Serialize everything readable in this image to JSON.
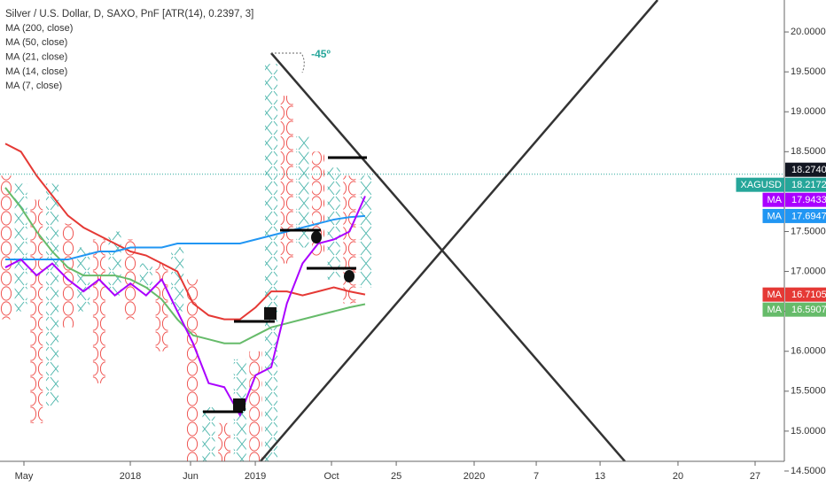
{
  "chart_data": {
    "type": "pnf",
    "title": "Silver / U.S. Dollar, D, SAXO, PnF [ATR(14), 0.2397, 3]",
    "indicators": [
      "MA (200, close)",
      "MA (50, close)",
      "MA (21, close)",
      "MA (14, close)",
      "MA (7, close)"
    ],
    "annotation": "-45º",
    "x_colors": "#4db6ac",
    "o_colors": "#ef5350",
    "columns": [
      {
        "type": "O",
        "high": 18.2,
        "low": 16.4
      },
      {
        "type": "X",
        "high": 18.1,
        "low": 16.5
      },
      {
        "type": "O",
        "high": 17.9,
        "low": 15.1
      },
      {
        "type": "X",
        "high": 18.1,
        "low": 15.3
      },
      {
        "type": "O",
        "high": 17.6,
        "low": 16.3
      },
      {
        "type": "X",
        "high": 17.3,
        "low": 16.5
      },
      {
        "type": "O",
        "high": 17.4,
        "low": 15.6
      },
      {
        "type": "X",
        "high": 17.5,
        "low": 16.7
      },
      {
        "type": "O",
        "high": 17.4,
        "low": 16.4
      },
      {
        "type": "X",
        "high": 17.1,
        "low": 16.8
      },
      {
        "type": "O",
        "high": 17.1,
        "low": 16.0
      },
      {
        "type": "X",
        "high": 17.3,
        "low": 16.5
      },
      {
        "type": "O",
        "high": 16.9,
        "low": 14.1
      },
      {
        "type": "X",
        "high": 15.3,
        "low": 14.3
      },
      {
        "type": "O",
        "high": 15.1,
        "low": 14.3
      },
      {
        "type": "X",
        "high": 15.9,
        "low": 14.3
      },
      {
        "type": "O",
        "high": 16.0,
        "low": 14.3
      },
      {
        "type": "X",
        "high": 19.6,
        "low": 14.3
      },
      {
        "type": "O",
        "high": 19.2,
        "low": 17.1
      },
      {
        "type": "X",
        "high": 18.7,
        "low": 17.3
      },
      {
        "type": "O",
        "high": 18.5,
        "low": 17.2
      },
      {
        "type": "X",
        "high": 18.3,
        "low": 16.9
      },
      {
        "type": "O",
        "high": 18.2,
        "low": 16.6
      },
      {
        "type": "X",
        "high": 18.2,
        "low": 16.8
      }
    ],
    "series": [
      {
        "name": "MA",
        "color": "#e53935",
        "values": [
          18.6,
          18.5,
          18.2,
          17.95,
          17.7,
          17.55,
          17.45,
          17.35,
          17.25,
          17.2,
          17.1,
          17.0,
          16.6,
          16.45,
          16.4,
          16.4,
          16.55,
          16.75,
          16.75,
          16.7,
          16.75,
          16.8,
          16.75,
          16.7105
        ]
      },
      {
        "name": "MA",
        "color": "#66bb6a",
        "values": [
          18.05,
          17.8,
          17.5,
          17.25,
          17.05,
          16.95,
          16.95,
          16.95,
          16.9,
          16.8,
          16.65,
          16.4,
          16.2,
          16.15,
          16.1,
          16.1,
          16.2,
          16.3,
          16.35,
          16.4,
          16.45,
          16.5,
          16.55,
          16.5907
        ]
      },
      {
        "name": "MA",
        "color": "#2196f3",
        "values": [
          17.15,
          17.15,
          17.15,
          17.15,
          17.15,
          17.2,
          17.25,
          17.25,
          17.3,
          17.3,
          17.3,
          17.35,
          17.35,
          17.35,
          17.35,
          17.35,
          17.4,
          17.45,
          17.5,
          17.55,
          17.6,
          17.65,
          17.68,
          17.6947
        ]
      },
      {
        "name": "MA",
        "color": "#aa00ff",
        "values": [
          17.05,
          17.15,
          16.95,
          17.1,
          16.9,
          16.75,
          16.9,
          16.7,
          16.85,
          16.7,
          16.9,
          16.5,
          16.1,
          15.6,
          15.55,
          15.2,
          15.7,
          15.8,
          16.6,
          17.1,
          17.35,
          17.4,
          17.5,
          17.9433
        ]
      }
    ],
    "last_price": {
      "name": "XAGUSD",
      "value": 18.2172,
      "color": "#26a69a"
    },
    "crosshair": {
      "value": 18.274,
      "label": "18.2740"
    },
    "xlim": [
      -0.34,
      49.8
    ],
    "xticks": [
      {
        "value": 1.19,
        "label": "May"
      },
      {
        "value": 7.99,
        "label": "2018"
      },
      {
        "value": 11.84,
        "label": "Jun"
      },
      {
        "value": 15.98,
        "label": "2019"
      },
      {
        "value": 20.85,
        "label": "Oct"
      },
      {
        "value": 24.99,
        "label": "25"
      },
      {
        "value": 29.97,
        "label": "2020"
      },
      {
        "value": 33.94,
        "label": "7"
      },
      {
        "value": 38.02,
        "label": "13"
      },
      {
        "value": 43.0,
        "label": "20"
      },
      {
        "value": 47.93,
        "label": "27"
      }
    ],
    "ylim": [
      14.3,
      20.4
    ],
    "yticks": [
      {
        "value": 20,
        "label": "20.0000"
      },
      {
        "value": 19.5,
        "label": "19.5000"
      },
      {
        "value": 19,
        "label": "19.0000"
      },
      {
        "value": 18.5,
        "label": "18.5000"
      },
      {
        "value": 17.5,
        "label": "17.5000"
      },
      {
        "value": 17,
        "label": "17.0000"
      },
      {
        "value": 16.5,
        "label": "16.5000"
      },
      {
        "value": 16,
        "label": "16.0000"
      },
      {
        "value": 15.5,
        "label": "15.5000"
      },
      {
        "value": 15,
        "label": "15.0000"
      },
      {
        "value": 14.5,
        "label": "14.5000"
      }
    ]
  }
}
